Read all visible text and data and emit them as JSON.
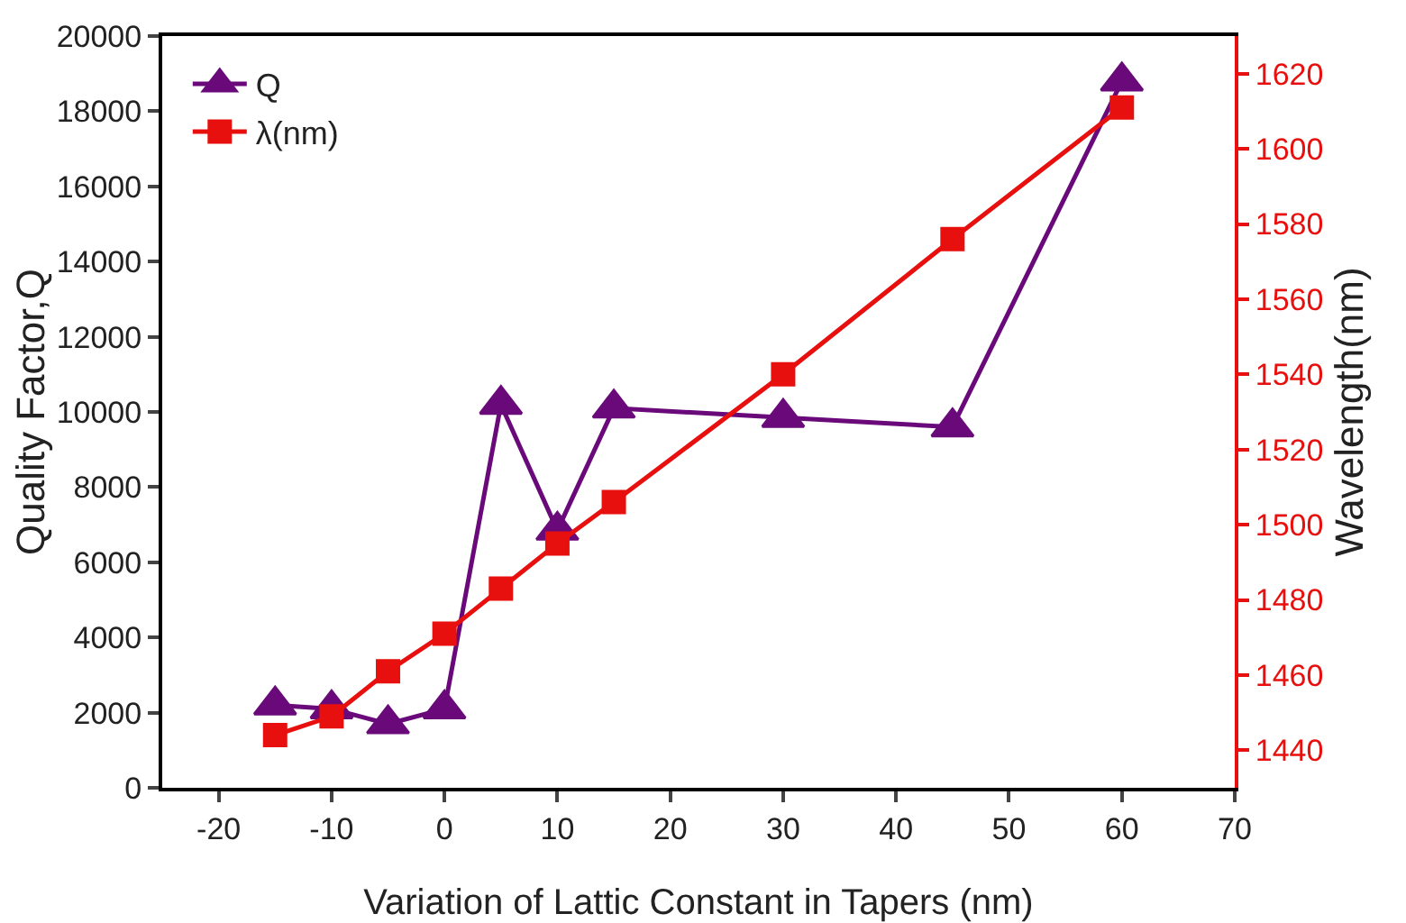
{
  "chart_data": {
    "type": "line",
    "xlabel": "Variation of Lattic Constant in Tapers (nm)",
    "ylabel": "Quality Factor,Q",
    "y2label": "Wavelength(nm)",
    "x": [
      -15,
      -10,
      -5,
      0,
      5,
      10,
      15,
      30,
      45,
      60
    ],
    "series": [
      {
        "name": "Q",
        "color": "#6a0a7a",
        "marker": "triangle",
        "values": [
          2200,
          2100,
          1700,
          2100,
          10200,
          6850,
          10100,
          9850,
          9600,
          18800
        ]
      },
      {
        "name": "λ(nm)",
        "color": "#e8100e",
        "marker": "square",
        "axis": "y2",
        "values": [
          1444,
          1449,
          1461,
          1471,
          1483,
          1495,
          1506,
          1540,
          1576,
          1611
        ]
      }
    ],
    "xlim": [
      -25,
      70
    ],
    "xticks": [
      -20,
      -10,
      0,
      10,
      20,
      30,
      40,
      50,
      60,
      70
    ],
    "ylim": [
      0,
      20000
    ],
    "yticks": [
      0,
      2000,
      4000,
      6000,
      8000,
      10000,
      12000,
      14000,
      16000,
      18000,
      20000
    ],
    "y2lim": [
      1430,
      1630
    ],
    "y2ticks": [
      1440,
      1460,
      1480,
      1500,
      1520,
      1540,
      1560,
      1580,
      1600,
      1620
    ],
    "legend": "top left",
    "grid": false,
    "line_style": "solid"
  }
}
